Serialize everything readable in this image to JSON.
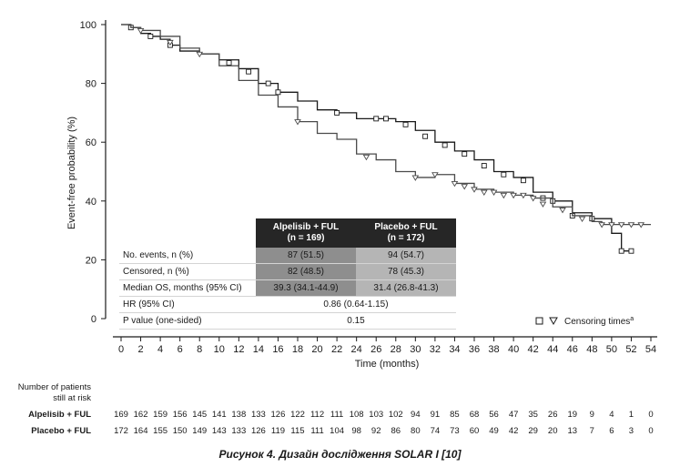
{
  "chart_data": {
    "type": "line",
    "ylabel": "Event-free probability (%)",
    "xlabel": "Time (months)",
    "xlim": [
      0,
      54
    ],
    "ylim": [
      0,
      100
    ],
    "x_ticks": [
      0,
      2,
      4,
      6,
      8,
      10,
      12,
      14,
      16,
      18,
      20,
      22,
      24,
      26,
      28,
      30,
      32,
      34,
      36,
      38,
      40,
      42,
      44,
      46,
      48,
      50,
      52,
      54
    ],
    "y_ticks": [
      0,
      20,
      40,
      60,
      80,
      100
    ],
    "series": [
      {
        "name": "Alpelisib + FUL",
        "color": "#1a1a1a",
        "censor_marker": "square",
        "points": [
          [
            0,
            100
          ],
          [
            1,
            99
          ],
          [
            2,
            97
          ],
          [
            3,
            96
          ],
          [
            4,
            95
          ],
          [
            5,
            93
          ],
          [
            6,
            91
          ],
          [
            8,
            90
          ],
          [
            10,
            88
          ],
          [
            12,
            85
          ],
          [
            14,
            80
          ],
          [
            16,
            77
          ],
          [
            18,
            74
          ],
          [
            20,
            71
          ],
          [
            22,
            70
          ],
          [
            24,
            68
          ],
          [
            26,
            68
          ],
          [
            28,
            67
          ],
          [
            30,
            64
          ],
          [
            32,
            60
          ],
          [
            34,
            57
          ],
          [
            36,
            54
          ],
          [
            38,
            50
          ],
          [
            40,
            48
          ],
          [
            42,
            43
          ],
          [
            44,
            40
          ],
          [
            46,
            36
          ],
          [
            48,
            34
          ],
          [
            50,
            29
          ],
          [
            51,
            23
          ],
          [
            52,
            23
          ]
        ],
        "censors": [
          [
            1,
            99
          ],
          [
            3,
            96
          ],
          [
            5,
            93
          ],
          [
            11,
            87
          ],
          [
            13,
            84
          ],
          [
            15,
            80
          ],
          [
            16,
            77
          ],
          [
            22,
            70
          ],
          [
            26,
            68
          ],
          [
            27,
            68
          ],
          [
            29,
            66
          ],
          [
            31,
            62
          ],
          [
            33,
            59
          ],
          [
            35,
            56
          ],
          [
            37,
            52
          ],
          [
            39,
            49
          ],
          [
            41,
            47
          ],
          [
            43,
            41
          ],
          [
            44,
            40
          ],
          [
            46,
            35
          ],
          [
            48,
            34
          ],
          [
            51,
            23
          ],
          [
            52,
            23
          ]
        ]
      },
      {
        "name": "Placebo + FUL",
        "color": "#4a4a4a",
        "censor_marker": "triangle",
        "points": [
          [
            0,
            100
          ],
          [
            1,
            99
          ],
          [
            2,
            98
          ],
          [
            4,
            96
          ],
          [
            6,
            92
          ],
          [
            8,
            90
          ],
          [
            10,
            86
          ],
          [
            12,
            81
          ],
          [
            14,
            76
          ],
          [
            16,
            72
          ],
          [
            18,
            67
          ],
          [
            20,
            63
          ],
          [
            22,
            61
          ],
          [
            24,
            56
          ],
          [
            26,
            54
          ],
          [
            28,
            50
          ],
          [
            30,
            48
          ],
          [
            32,
            49
          ],
          [
            34,
            46
          ],
          [
            36,
            44
          ],
          [
            38,
            43
          ],
          [
            40,
            42
          ],
          [
            42,
            41
          ],
          [
            44,
            38
          ],
          [
            46,
            35
          ],
          [
            48,
            33
          ],
          [
            49,
            32
          ],
          [
            54,
            32
          ]
        ],
        "censors": [
          [
            2,
            98
          ],
          [
            5,
            94
          ],
          [
            8,
            90
          ],
          [
            18,
            67
          ],
          [
            25,
            55
          ],
          [
            30,
            48
          ],
          [
            32,
            49
          ],
          [
            34,
            46
          ],
          [
            35,
            45
          ],
          [
            36,
            44
          ],
          [
            37,
            43
          ],
          [
            38,
            43
          ],
          [
            39,
            42
          ],
          [
            40,
            42
          ],
          [
            41,
            42
          ],
          [
            42,
            41
          ],
          [
            43,
            39
          ],
          [
            45,
            37
          ],
          [
            47,
            34
          ],
          [
            49,
            32
          ],
          [
            50,
            32
          ],
          [
            51,
            32
          ],
          [
            52,
            32
          ],
          [
            53,
            32
          ]
        ]
      }
    ],
    "risk_table": {
      "title_line1": "Number of patients",
      "title_line2": "still at risk",
      "times": [
        0,
        2,
        4,
        6,
        8,
        10,
        12,
        14,
        16,
        18,
        20,
        22,
        24,
        26,
        28,
        30,
        32,
        34,
        36,
        38,
        40,
        42,
        44,
        46,
        48,
        50,
        52,
        54
      ],
      "rows": [
        {
          "label": "Alpelisib + FUL",
          "values": [
            "169",
            "162",
            "159",
            "156",
            "145",
            "141",
            "138",
            "133",
            "126",
            "122",
            "112",
            "111",
            "108",
            "103",
            "102",
            "94",
            "91",
            "85",
            "68",
            "56",
            "47",
            "35",
            "26",
            "19",
            "9",
            "4",
            "1",
            "0"
          ]
        },
        {
          "label": "Placebo + FUL",
          "values": [
            "172",
            "164",
            "155",
            "150",
            "149",
            "143",
            "133",
            "126",
            "119",
            "115",
            "111",
            "104",
            "98",
            "92",
            "86",
            "80",
            "74",
            "73",
            "60",
            "49",
            "42",
            "29",
            "20",
            "13",
            "7",
            "6",
            "3",
            "0"
          ]
        }
      ]
    },
    "legend": {
      "text": "Censoring times",
      "superscript": "a",
      "placement": "bottom-right"
    }
  },
  "stats_table": {
    "col1_header_line1": "Alpelisib + FUL",
    "col1_header_line2": "(n = 169)",
    "col2_header_line1": "Placebo + FUL",
    "col2_header_line2": "(n = 172)",
    "rows": [
      {
        "label": "No. events, n (%)",
        "v1": "87 (51.5)",
        "v2": "94 (54.7)"
      },
      {
        "label": "Censored, n (%)",
        "v1": "82 (48.5)",
        "v2": "78 (45.3)"
      },
      {
        "label": "Median OS, months (95% CI)",
        "v1": "39.3 (34.1-44.9)",
        "v2": "31.4 (26.8-41.3)"
      }
    ],
    "hr_label": "HR (95% CI)",
    "hr_value": "0.86 (0.64-1.15)",
    "p_label": "P value (one-sided)",
    "p_value": "0.15"
  },
  "caption": "Рисунок 4. Дизайн дослідження SOLAR I [10]"
}
